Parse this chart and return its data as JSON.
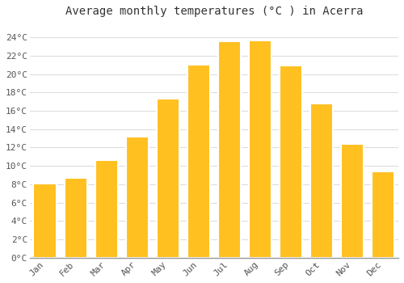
{
  "title": "Average monthly temperatures (°C ) in Acerra",
  "months": [
    "Jan",
    "Feb",
    "Mar",
    "Apr",
    "May",
    "Jun",
    "Jul",
    "Aug",
    "Sep",
    "Oct",
    "Nov",
    "Dec"
  ],
  "values": [
    8.1,
    8.7,
    10.6,
    13.2,
    17.3,
    21.0,
    23.6,
    23.7,
    20.9,
    16.8,
    12.4,
    9.4
  ],
  "bar_color": "#FFC020",
  "bar_edge_color": "#FFFFFF",
  "background_color": "#FFFFFF",
  "grid_color": "#DDDDDD",
  "ylim": [
    0,
    25.5
  ],
  "yticks": [
    0,
    2,
    4,
    6,
    8,
    10,
    12,
    14,
    16,
    18,
    20,
    22,
    24
  ],
  "title_fontsize": 10,
  "tick_fontsize": 8,
  "font_family": "monospace",
  "bar_width": 0.75
}
